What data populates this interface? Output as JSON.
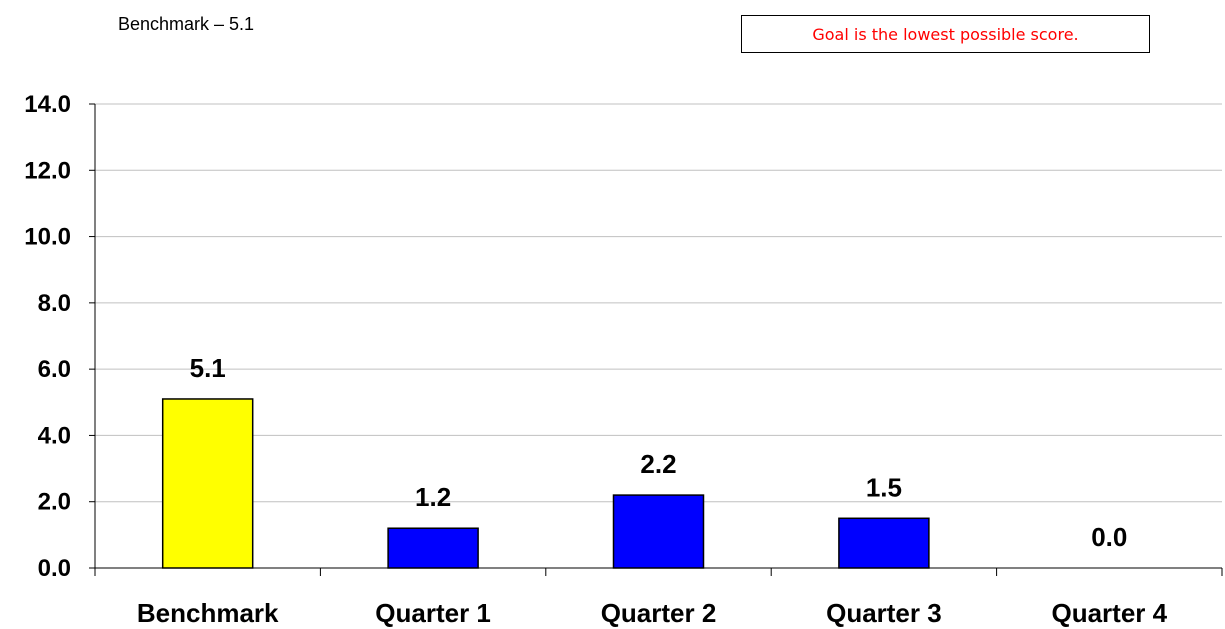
{
  "note": "Benchmark – 5.1",
  "goal_text": "Goal is the lowest possible score.",
  "colors": {
    "benchmark": "#ffff00",
    "quarter": "#0000ff",
    "goal_text": "#ff0000",
    "gridline": "#c0c0c0"
  },
  "chart_data": {
    "type": "bar",
    "title": "",
    "xlabel": "",
    "ylabel": "",
    "categories": [
      "Benchmark",
      "Quarter 1",
      "Quarter 2",
      "Quarter 3",
      "Quarter 4"
    ],
    "values": [
      5.1,
      1.2,
      2.2,
      1.5,
      0.0
    ],
    "data_labels": [
      "5.1",
      "1.2",
      "2.2",
      "1.5",
      "0.0"
    ],
    "bar_colors": [
      "#ffff00",
      "#0000ff",
      "#0000ff",
      "#0000ff",
      "#0000ff"
    ],
    "ylim": [
      0,
      14
    ],
    "yticks": [
      0,
      2,
      4,
      6,
      8,
      10,
      12,
      14
    ],
    "ytick_labels": [
      "0.0",
      "2.0",
      "4.0",
      "6.0",
      "8.0",
      "10.0",
      "12.0",
      "14.0"
    ],
    "grid": true,
    "legend": "none"
  }
}
